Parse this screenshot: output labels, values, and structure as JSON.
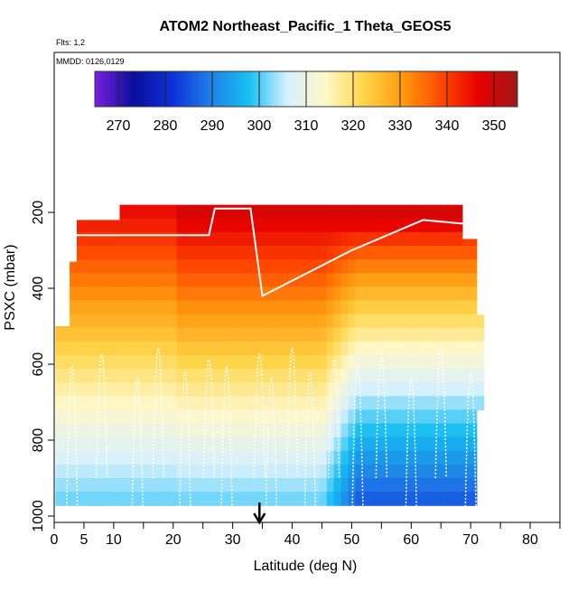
{
  "chart_data": {
    "type": "heatmap",
    "title": "ATOM2 Northeast_Pacific_1 Theta_GEOS5",
    "flights_label": "Flts: 1,2",
    "dates_label": "MMDD: 0126,0129",
    "xlabel": "Latitude (deg N)",
    "ylabel": "PSXC (mbar)",
    "xlim": [
      0,
      85
    ],
    "ylim": [
      1000,
      100
    ],
    "x_ticks": [
      0,
      5,
      10,
      20,
      30,
      40,
      50,
      60,
      70,
      80
    ],
    "y_ticks": [
      200,
      400,
      600,
      800,
      1000
    ],
    "colorbar": {
      "ticks": [
        270,
        280,
        290,
        300,
        310,
        320,
        330,
        340,
        350
      ],
      "range": [
        265,
        355
      ],
      "colors": [
        "#7a1fe0",
        "#0a0f9a",
        "#0d2fd8",
        "#1f7fe8",
        "#16bff2",
        "#d6f0ff",
        "#fff8c8",
        "#ffd54a",
        "#ff9b0f",
        "#ff4a00",
        "#e60000",
        "#a01818"
      ]
    },
    "marker": {
      "latitude": 34.5
    },
    "grid": false,
    "legend": "colorbar top"
  }
}
